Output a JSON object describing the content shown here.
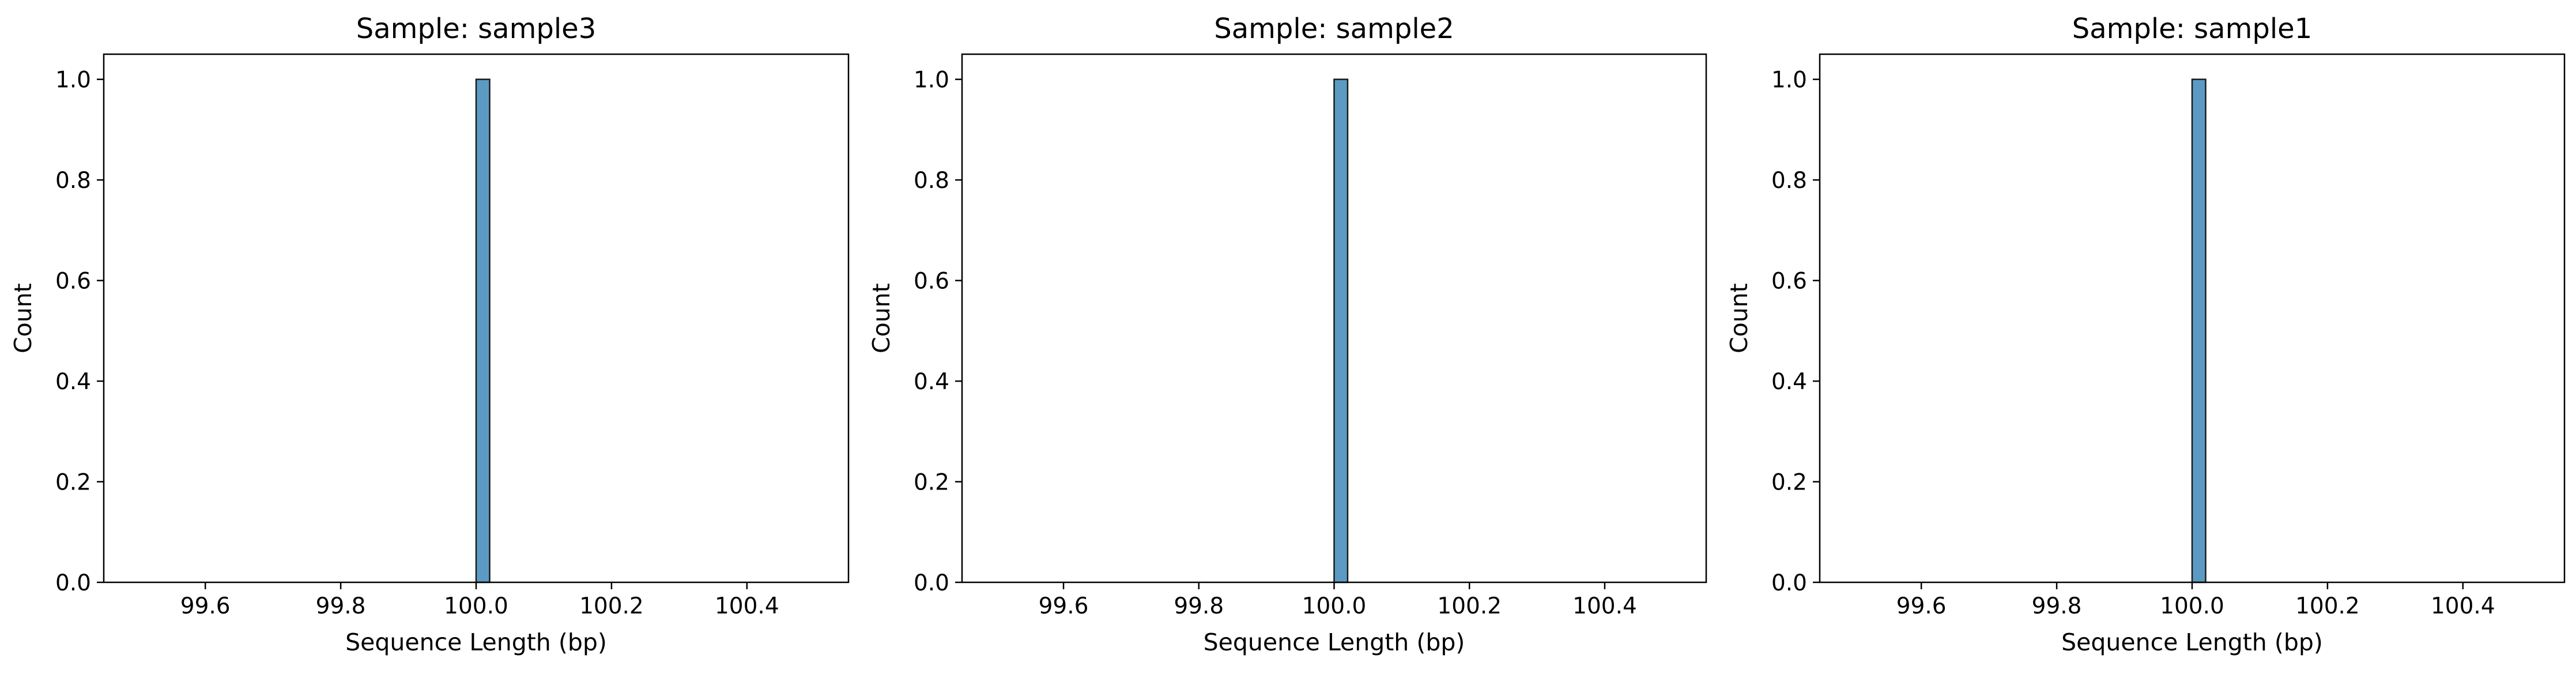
{
  "chart_data": [
    {
      "type": "bar",
      "title": "Sample: sample3",
      "xlabel": "Sequence Length (bp)",
      "ylabel": "Count",
      "xlim": [
        99.45,
        100.55
      ],
      "ylim": [
        0,
        1.05
      ],
      "xticks": [
        "99.6",
        "99.8",
        "100.0",
        "100.2",
        "100.4"
      ],
      "yticks": [
        "0.0",
        "0.2",
        "0.4",
        "0.6",
        "0.8",
        "1.0"
      ],
      "bars": [
        {
          "x_start": 100.0,
          "x_end": 100.02,
          "count": 1
        }
      ],
      "grid": false,
      "bar_color": "#5b9bc3",
      "edge_color": "#1a1a1a"
    },
    {
      "type": "bar",
      "title": "Sample: sample2",
      "xlabel": "Sequence Length (bp)",
      "ylabel": "Count",
      "xlim": [
        99.45,
        100.55
      ],
      "ylim": [
        0,
        1.05
      ],
      "xticks": [
        "99.6",
        "99.8",
        "100.0",
        "100.2",
        "100.4"
      ],
      "yticks": [
        "0.0",
        "0.2",
        "0.4",
        "0.6",
        "0.8",
        "1.0"
      ],
      "bars": [
        {
          "x_start": 100.0,
          "x_end": 100.02,
          "count": 1
        }
      ],
      "grid": false,
      "bar_color": "#5b9bc3",
      "edge_color": "#1a1a1a"
    },
    {
      "type": "bar",
      "title": "Sample: sample1",
      "xlabel": "Sequence Length (bp)",
      "ylabel": "Count",
      "xlim": [
        99.45,
        100.55
      ],
      "ylim": [
        0,
        1.05
      ],
      "xticks": [
        "99.6",
        "99.8",
        "100.0",
        "100.2",
        "100.4"
      ],
      "yticks": [
        "0.0",
        "0.2",
        "0.4",
        "0.6",
        "0.8",
        "1.0"
      ],
      "bars": [
        {
          "x_start": 100.0,
          "x_end": 100.02,
          "count": 1
        }
      ],
      "grid": false,
      "bar_color": "#5b9bc3",
      "edge_color": "#1a1a1a"
    }
  ]
}
